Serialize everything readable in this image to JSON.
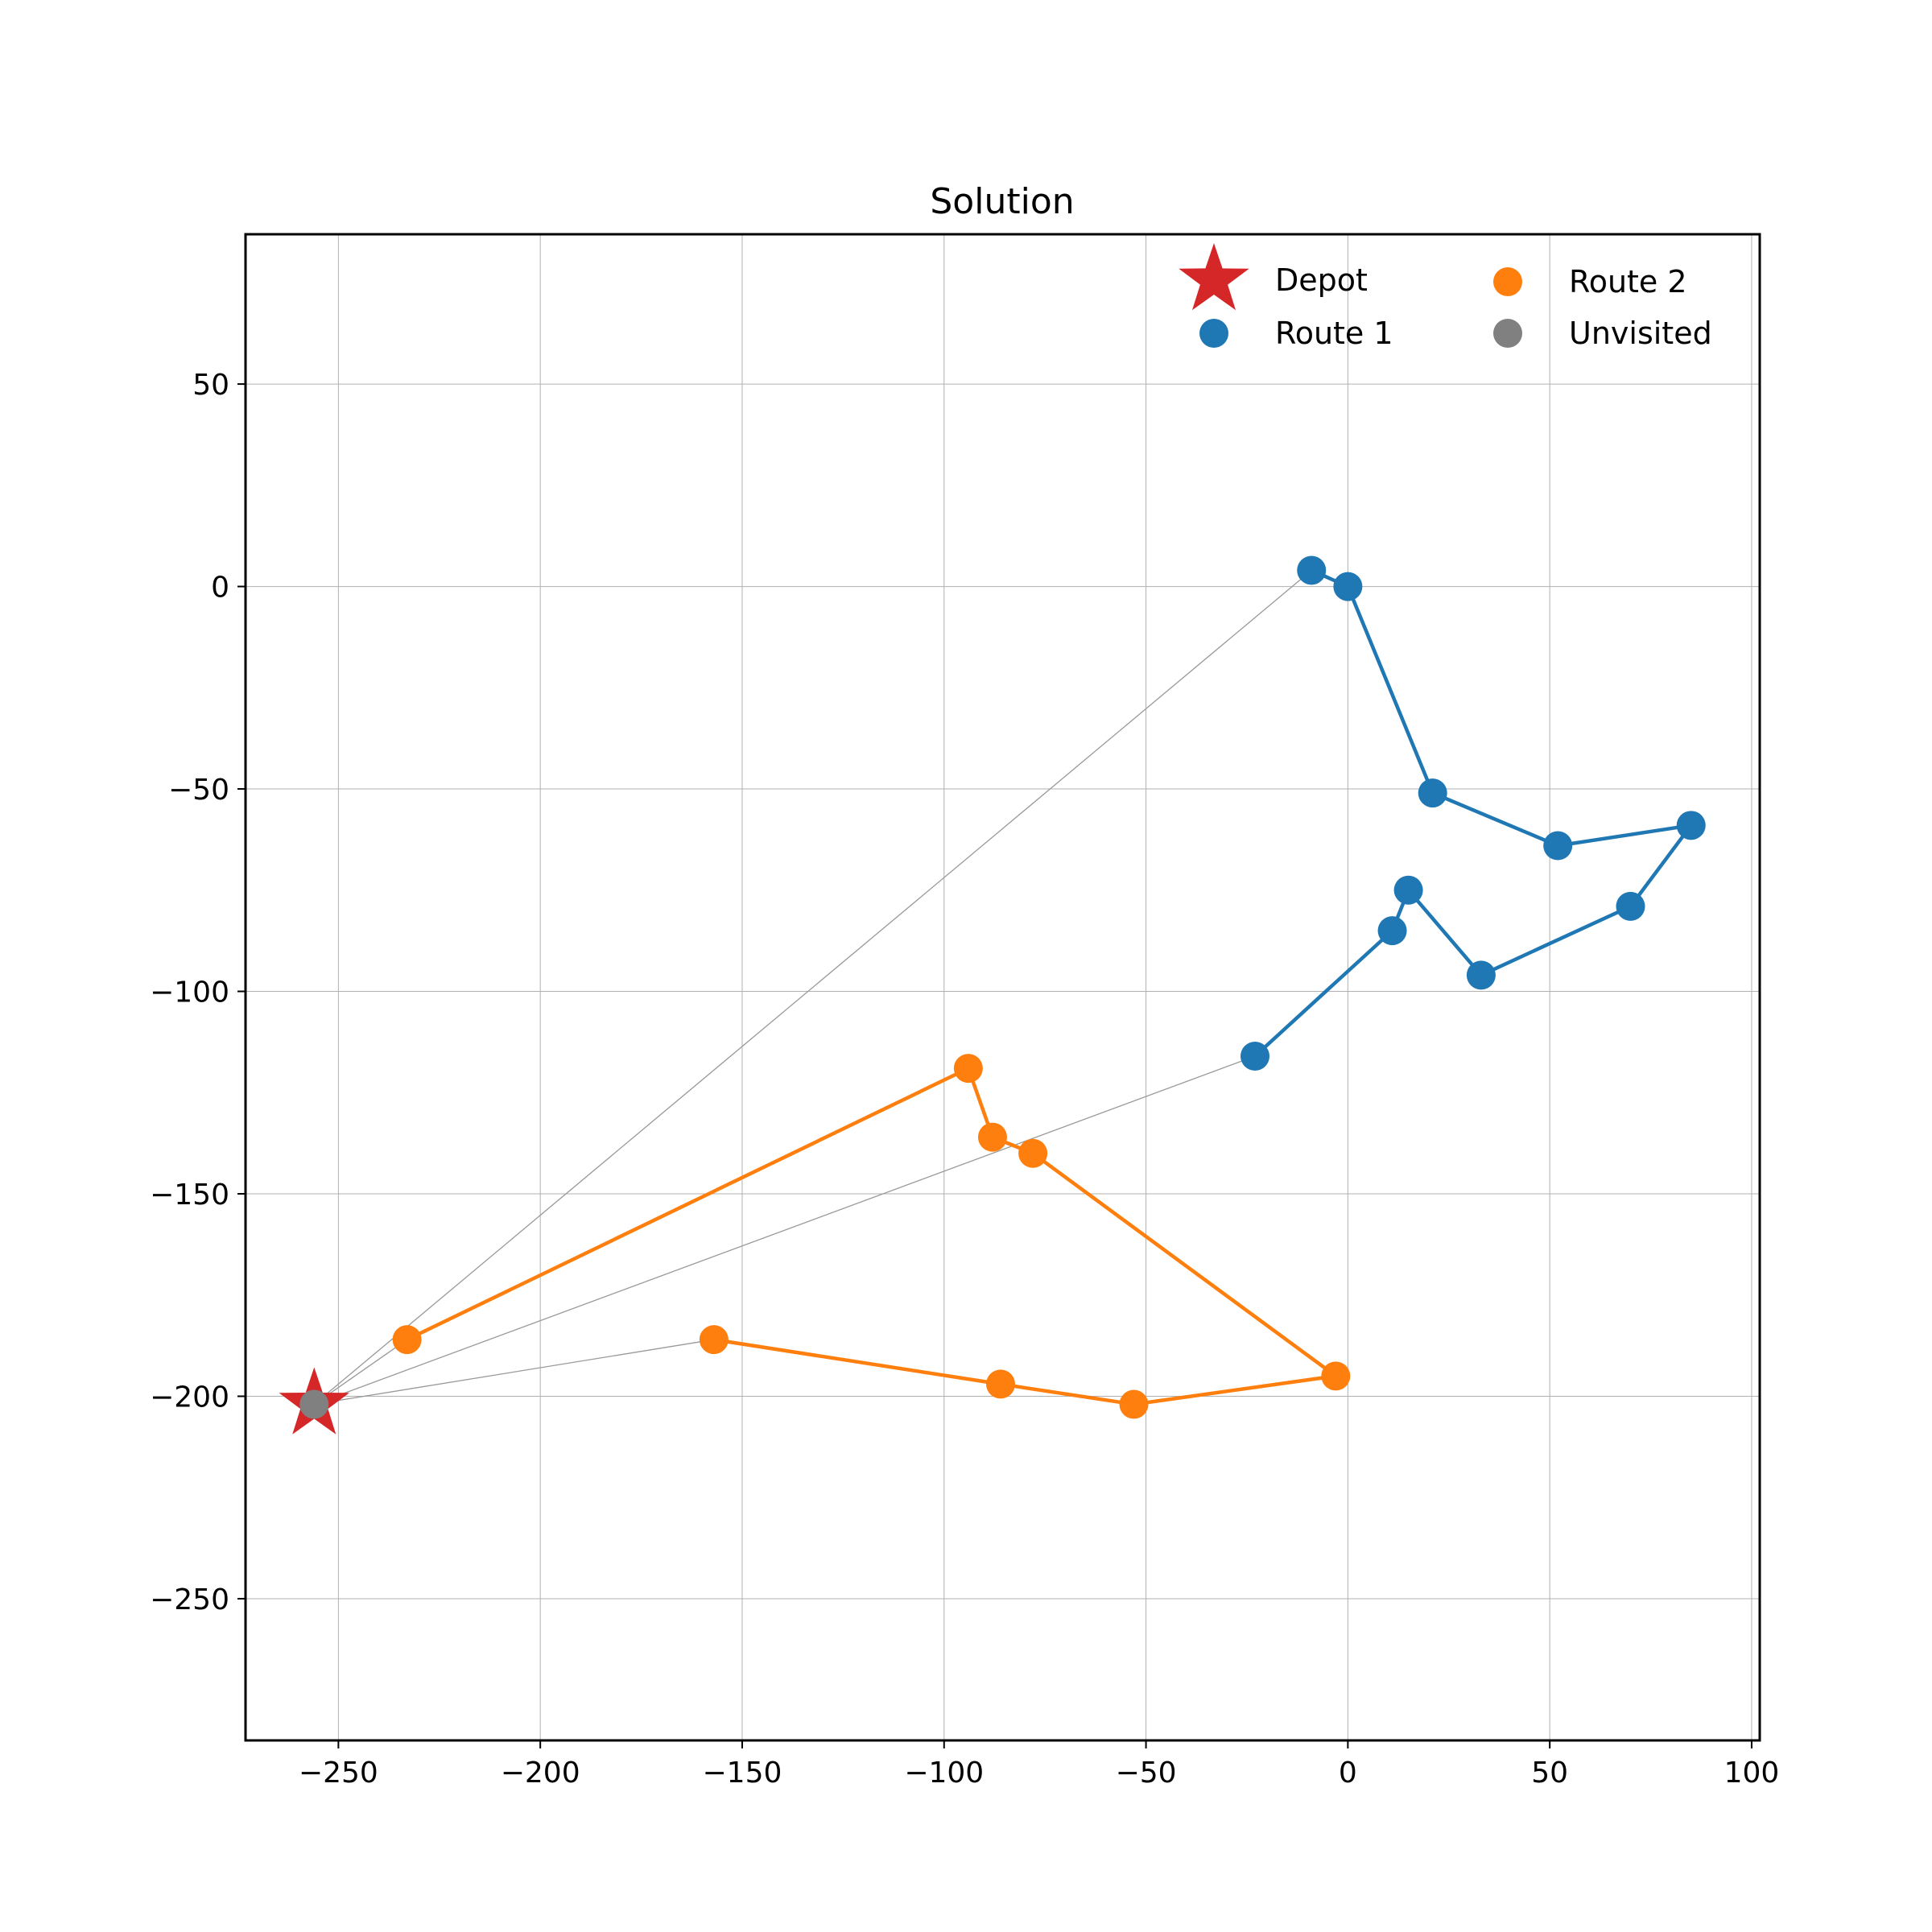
{
  "chart_data": {
    "type": "scatter",
    "title": "Solution",
    "xlabel": "",
    "ylabel": "",
    "xlim": [
      -273,
      102
    ],
    "ylim": [
      -285,
      87
    ],
    "xticks": [
      -250,
      -200,
      -150,
      -100,
      -50,
      0,
      50,
      100
    ],
    "yticks": [
      50,
      0,
      -50,
      -100,
      -150,
      -200,
      -250
    ],
    "xtick_labels": [
      "−250",
      "−200",
      "−150",
      "−100",
      "−50",
      "0",
      "50",
      "100"
    ],
    "ytick_labels": [
      "50",
      "0",
      "−50",
      "−100",
      "−150",
      "−200",
      "−250"
    ],
    "grid": true,
    "legend_position": "top-right",
    "depot": {
      "name": "Depot",
      "x": -256,
      "y": -202,
      "color": "#d62728",
      "marker": "star"
    },
    "series": [
      {
        "name": "Route 1",
        "color": "#1f77b4",
        "points": [
          [
            -23,
            -116
          ],
          [
            11,
            -85
          ],
          [
            15,
            -75
          ],
          [
            33,
            -96
          ],
          [
            70,
            -79
          ],
          [
            85,
            -59
          ],
          [
            52,
            -64
          ],
          [
            21,
            -51
          ],
          [
            0,
            0
          ],
          [
            -9,
            4
          ]
        ]
      },
      {
        "name": "Route 2",
        "color": "#ff7f0e",
        "points": [
          [
            -157,
            -186
          ],
          [
            -86,
            -197
          ],
          [
            -53,
            -202
          ],
          [
            -3,
            -195
          ],
          [
            -78,
            -140
          ],
          [
            -88,
            -136
          ],
          [
            -94,
            -119
          ],
          [
            -233,
            -186
          ]
        ]
      }
    ],
    "unvisited": {
      "name": "Unvisited",
      "color": "#808080",
      "points": [
        [
          -256,
          -202
        ]
      ]
    },
    "depot_links_color": "#999999",
    "depot_links": [
      {
        "from": [
          -256,
          -202
        ],
        "to": [
          -157,
          -186
        ]
      },
      {
        "from": [
          -256,
          -202
        ],
        "to": [
          -23,
          -116
        ]
      },
      {
        "from": [
          -256,
          -202
        ],
        "to": [
          -9,
          4
        ],
        "arrow": true
      },
      {
        "from": [
          -256,
          -202
        ],
        "to": [
          -233,
          -186
        ],
        "arrow": true
      }
    ]
  }
}
